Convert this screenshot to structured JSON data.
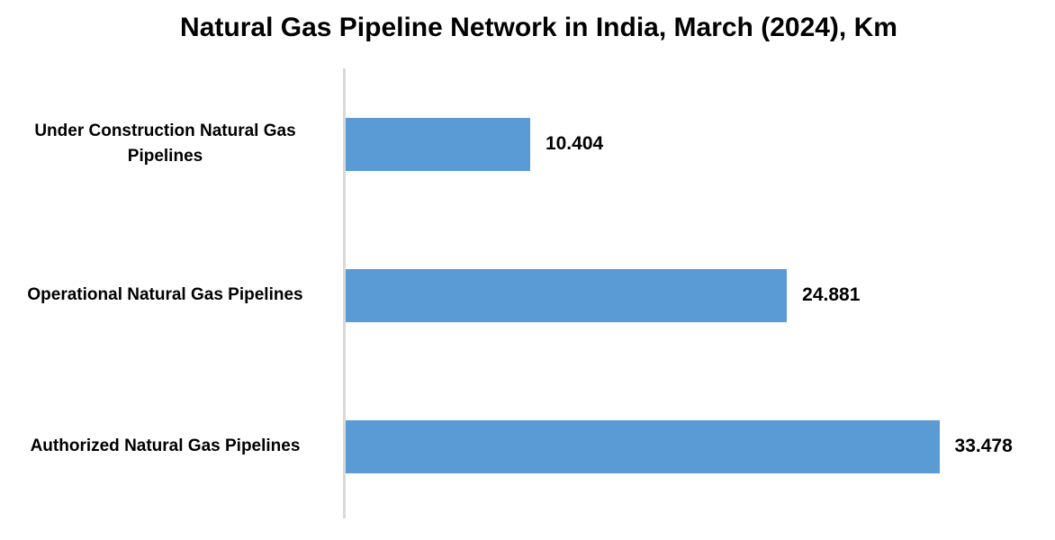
{
  "chart_data": {
    "type": "bar",
    "orientation": "horizontal",
    "title": "Natural Gas Pipeline Network in India, March (2024), Km",
    "categories": [
      "Under Construction Natural Gas Pipelines",
      "Operational Natural Gas Pipelines",
      "Authorized Natural Gas Pipelines"
    ],
    "values": [
      10.404,
      24.881,
      33.478
    ],
    "value_labels": [
      "10.404",
      "24.881",
      "33.478"
    ],
    "xlabel": "",
    "ylabel": "",
    "xlim": [
      0,
      40
    ],
    "grid": false,
    "legend": false,
    "layout_hint": "categories listed top-to-bottom; value labels at end of bars; y-axis line only, no ticks",
    "colors": {
      "bar": "#5b9bd5",
      "axis_line": "#d9d9d9",
      "text": "#000000",
      "background": "#ffffff"
    }
  }
}
